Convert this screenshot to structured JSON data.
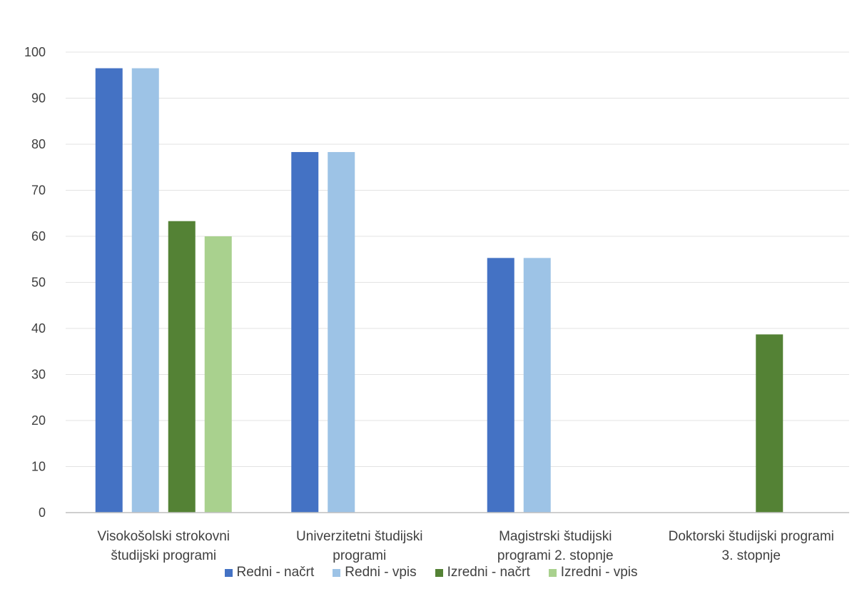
{
  "chart_data": {
    "type": "bar",
    "categories": [
      [
        "Visokošolski strokovni",
        "študijski programi"
      ],
      [
        "Univerzitetni študijski",
        "programi"
      ],
      [
        "Magistrski študijski",
        "programi 2. stopnje"
      ],
      [
        "Doktorski študijski programi",
        "3. stopnje"
      ]
    ],
    "series": [
      {
        "name": "Redni - načrt",
        "color": "#4472C4",
        "values": [
          96.5,
          78.3,
          55.3,
          0
        ]
      },
      {
        "name": "Redni - vpis",
        "color": "#9DC3E6",
        "values": [
          96.5,
          78.3,
          55.3,
          0
        ]
      },
      {
        "name": "Izredni - načrt",
        "color": "#548235",
        "values": [
          63.3,
          0,
          0,
          38.7
        ]
      },
      {
        "name": "Izredni - vpis",
        "color": "#A9D18E",
        "values": [
          60.0,
          0,
          0,
          0
        ]
      }
    ],
    "ylim": [
      0,
      100
    ],
    "yticks": [
      0,
      10,
      20,
      30,
      40,
      50,
      60,
      70,
      80,
      90,
      100
    ],
    "grid": true,
    "legend": "bottom"
  }
}
